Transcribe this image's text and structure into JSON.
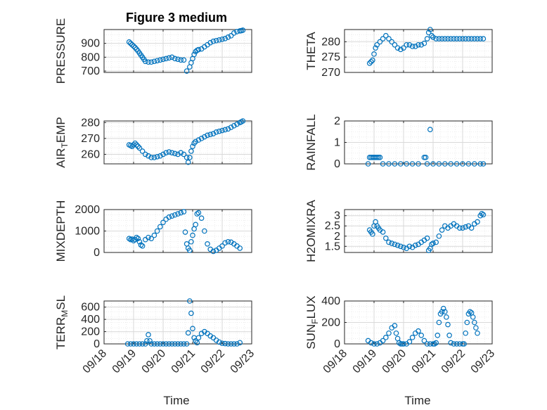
{
  "chart_data": [
    {
      "id": "pressure",
      "type": "scatter",
      "title": "Figure 3 medium",
      "ylabel": "PRESSURE",
      "ylim": [
        690,
        1000
      ],
      "yticks": [
        700,
        800,
        900
      ],
      "x": [
        0.85,
        0.9,
        0.95,
        1.0,
        1.05,
        1.1,
        1.15,
        1.2,
        1.25,
        1.3,
        1.35,
        1.4,
        1.5,
        1.6,
        1.7,
        1.8,
        1.9,
        2.0,
        2.1,
        2.2,
        2.3,
        2.4,
        2.5,
        2.6,
        2.7,
        2.8,
        2.9,
        2.95,
        3.0,
        3.05,
        3.1,
        3.15,
        3.2,
        3.3,
        3.4,
        3.5,
        3.6,
        3.7,
        3.8,
        3.9,
        4.0,
        4.1,
        4.2,
        4.3,
        4.4,
        4.5,
        4.6,
        4.65,
        4.7
      ],
      "y": [
        910,
        900,
        890,
        880,
        870,
        858,
        845,
        830,
        815,
        800,
        785,
        770,
        765,
        765,
        770,
        775,
        780,
        785,
        790,
        795,
        800,
        790,
        785,
        780,
        780,
        700,
        730,
        760,
        790,
        820,
        840,
        850,
        855,
        860,
        875,
        890,
        905,
        915,
        920,
        925,
        930,
        935,
        945,
        955,
        975,
        985,
        990,
        992,
        995
      ]
    },
    {
      "id": "theta",
      "type": "scatter",
      "ylabel": "THETA",
      "ylim": [
        270,
        284
      ],
      "yticks": [
        270,
        275,
        280
      ],
      "x": [
        0.85,
        0.9,
        0.95,
        1.0,
        1.05,
        1.1,
        1.2,
        1.3,
        1.4,
        1.5,
        1.6,
        1.7,
        1.8,
        1.9,
        2.0,
        2.1,
        2.2,
        2.3,
        2.4,
        2.5,
        2.6,
        2.7,
        2.8,
        2.85,
        2.9,
        2.95,
        3.0,
        3.1,
        3.2,
        3.3,
        3.4,
        3.5,
        3.6,
        3.7,
        3.8,
        3.9,
        4.0,
        4.1,
        4.2,
        4.3,
        4.4,
        4.5,
        4.6,
        4.7
      ],
      "y": [
        273,
        273.5,
        274,
        276,
        278,
        279,
        280,
        281,
        282,
        281,
        280,
        279,
        278,
        277.5,
        278,
        279,
        279,
        278.5,
        278.5,
        279,
        279,
        279.5,
        281,
        283,
        284,
        282,
        281.5,
        281,
        281,
        281,
        281,
        281,
        281,
        281,
        281,
        281,
        281,
        281,
        281,
        281,
        281,
        281,
        281,
        281
      ]
    },
    {
      "id": "air_temp",
      "type": "scatter",
      "ylabel": "AIR_TEMP",
      "ylim": [
        254,
        281
      ],
      "yticks": [
        260,
        270,
        280
      ],
      "x": [
        0.85,
        0.9,
        0.95,
        1.0,
        1.05,
        1.1,
        1.15,
        1.2,
        1.3,
        1.4,
        1.5,
        1.6,
        1.7,
        1.8,
        1.9,
        2.0,
        2.1,
        2.2,
        2.3,
        2.4,
        2.5,
        2.6,
        2.7,
        2.8,
        2.85,
        2.9,
        2.95,
        3.0,
        3.05,
        3.1,
        3.2,
        3.3,
        3.4,
        3.5,
        3.6,
        3.7,
        3.8,
        3.9,
        4.0,
        4.1,
        4.2,
        4.3,
        4.4,
        4.5,
        4.6,
        4.65,
        4.7
      ],
      "y": [
        266,
        265.5,
        265,
        266,
        267,
        266,
        265,
        264,
        262,
        260,
        259,
        258,
        258,
        258.5,
        259,
        260,
        261,
        261.5,
        261,
        260.5,
        260,
        261,
        260,
        258,
        255,
        258,
        262,
        265,
        267,
        268,
        269,
        270,
        271,
        272,
        272.5,
        273,
        274,
        274.5,
        275,
        275.5,
        276,
        277,
        278,
        279,
        280,
        280.5,
        281
      ]
    },
    {
      "id": "rainfall",
      "type": "scatter",
      "ylabel": "RAINFALL",
      "ylim": [
        0,
        2
      ],
      "yticks": [
        0,
        1,
        2
      ],
      "x": [
        0.8,
        0.85,
        0.9,
        0.95,
        1.0,
        1.05,
        1.1,
        1.15,
        1.2,
        1.3,
        1.5,
        1.7,
        1.9,
        2.1,
        2.3,
        2.5,
        2.7,
        2.75,
        2.8,
        2.9,
        3.0,
        3.2,
        3.4,
        3.6,
        3.8,
        4.0,
        4.2,
        4.4,
        4.6,
        4.7
      ],
      "y": [
        0,
        0.3,
        0.3,
        0.3,
        0.3,
        0.3,
        0.3,
        0.3,
        0.3,
        0,
        0,
        0,
        0,
        0,
        0,
        0,
        0.3,
        0.3,
        0,
        1.6,
        0,
        0,
        0,
        0,
        0,
        0,
        0,
        0,
        0,
        0
      ]
    },
    {
      "id": "mixdepth",
      "type": "scatter",
      "ylabel": "MIXDEPTH",
      "ylim": [
        0,
        2000
      ],
      "yticks": [
        0,
        1000,
        2000
      ],
      "x": [
        0.85,
        0.9,
        0.95,
        1.0,
        1.05,
        1.1,
        1.15,
        1.2,
        1.25,
        1.3,
        1.4,
        1.5,
        1.6,
        1.7,
        1.8,
        1.9,
        2.0,
        2.1,
        2.2,
        2.3,
        2.4,
        2.5,
        2.6,
        2.7,
        2.75,
        2.8,
        2.85,
        2.9,
        2.95,
        3.0,
        3.05,
        3.1,
        3.15,
        3.2,
        3.3,
        3.4,
        3.5,
        3.6,
        3.7,
        3.8,
        3.9,
        4.0,
        4.1,
        4.2,
        4.3,
        4.4,
        4.5,
        4.6
      ],
      "y": [
        650,
        600,
        620,
        550,
        600,
        700,
        650,
        500,
        350,
        300,
        600,
        700,
        650,
        800,
        1000,
        1200,
        1400,
        1550,
        1650,
        1700,
        1750,
        1800,
        1850,
        1900,
        950,
        400,
        200,
        100,
        500,
        800,
        1100,
        1300,
        1800,
        1850,
        1600,
        1000,
        400,
        150,
        50,
        100,
        200,
        300,
        450,
        500,
        480,
        400,
        300,
        200
      ]
    },
    {
      "id": "h2omixra",
      "type": "scatter",
      "ylabel": "H2OMIXRA",
      "ylim": [
        1.2,
        3.3
      ],
      "yticks": [
        1.5,
        2,
        2.5,
        3
      ],
      "x": [
        0.85,
        0.9,
        0.95,
        1.0,
        1.05,
        1.1,
        1.15,
        1.2,
        1.3,
        1.4,
        1.5,
        1.6,
        1.7,
        1.8,
        1.9,
        2.0,
        2.1,
        2.2,
        2.3,
        2.4,
        2.5,
        2.6,
        2.7,
        2.8,
        2.85,
        2.9,
        2.95,
        3.0,
        3.1,
        3.2,
        3.3,
        3.4,
        3.5,
        3.6,
        3.7,
        3.8,
        3.9,
        4.0,
        4.1,
        4.2,
        4.3,
        4.4,
        4.5,
        4.6,
        4.65,
        4.7
      ],
      "y": [
        2.3,
        2.2,
        2.1,
        2.5,
        2.7,
        2.5,
        2.4,
        2.3,
        2.2,
        1.9,
        1.7,
        1.65,
        1.6,
        1.55,
        1.5,
        1.45,
        1.4,
        1.5,
        1.45,
        1.55,
        1.6,
        1.7,
        1.8,
        1.9,
        1.3,
        1.4,
        1.6,
        1.65,
        1.7,
        2.0,
        2.3,
        2.5,
        2.4,
        2.5,
        2.6,
        2.5,
        2.4,
        2.4,
        2.45,
        2.5,
        2.4,
        2.6,
        2.7,
        3.0,
        3.1,
        3.05
      ]
    },
    {
      "id": "terr_msl",
      "type": "scatter",
      "ylabel": "TERR_MSL",
      "ylim": [
        0,
        700
      ],
      "yticks": [
        0,
        200,
        400,
        600
      ],
      "x": [
        0.8,
        0.9,
        1.0,
        1.1,
        1.2,
        1.3,
        1.4,
        1.45,
        1.5,
        1.55,
        1.6,
        1.7,
        1.8,
        1.9,
        2.0,
        2.1,
        2.2,
        2.3,
        2.4,
        2.5,
        2.6,
        2.7,
        2.8,
        2.85,
        2.9,
        2.95,
        3.0,
        3.05,
        3.1,
        3.15,
        3.2,
        3.3,
        3.4,
        3.5,
        3.6,
        3.7,
        3.8,
        3.9,
        4.0,
        4.1,
        4.2,
        4.3,
        4.4,
        4.5,
        4.6
      ],
      "y": [
        0,
        0,
        0,
        0,
        0,
        0,
        0,
        50,
        150,
        50,
        0,
        0,
        0,
        0,
        0,
        0,
        0,
        0,
        0,
        0,
        0,
        0,
        0,
        180,
        700,
        500,
        250,
        100,
        50,
        20,
        100,
        170,
        200,
        170,
        130,
        100,
        60,
        30,
        10,
        5,
        0,
        0,
        0,
        0,
        20
      ]
    },
    {
      "id": "sun_flux",
      "type": "scatter",
      "ylabel": "SUN_FLUX",
      "ylim": [
        0,
        400
      ],
      "yticks": [
        0,
        200,
        400
      ],
      "x": [
        0.8,
        0.9,
        1.0,
        1.1,
        1.2,
        1.3,
        1.4,
        1.5,
        1.6,
        1.7,
        1.75,
        1.8,
        1.85,
        1.9,
        1.95,
        2.0,
        2.1,
        2.2,
        2.3,
        2.4,
        2.5,
        2.6,
        2.7,
        2.8,
        2.9,
        3.0,
        3.05,
        3.1,
        3.15,
        3.2,
        3.25,
        3.3,
        3.35,
        3.4,
        3.45,
        3.5,
        3.55,
        3.6,
        3.7,
        3.8,
        3.9,
        4.0,
        4.05,
        4.1,
        4.15,
        4.2,
        4.25,
        4.3,
        4.35,
        4.4,
        4.45,
        4.5
      ],
      "y": [
        30,
        10,
        0,
        0,
        10,
        30,
        60,
        100,
        150,
        170,
        100,
        50,
        10,
        0,
        0,
        0,
        0,
        20,
        60,
        100,
        120,
        80,
        30,
        0,
        0,
        0,
        0,
        10,
        80,
        200,
        280,
        300,
        330,
        300,
        250,
        180,
        80,
        10,
        0,
        0,
        0,
        0,
        0,
        100,
        200,
        280,
        300,
        290,
        250,
        200,
        150,
        100
      ]
    }
  ],
  "panels": [
    {
      "xticks": [],
      "ylabel": {
        "pre": "PRESSURE",
        "sub": "",
        "post": ""
      },
      "yticklabels": [
        "700",
        "800",
        "900"
      ]
    },
    {
      "xticks": [],
      "ylabel": {
        "pre": "THETA",
        "sub": "",
        "post": ""
      },
      "yticklabels": [
        "270",
        "275",
        "280"
      ]
    },
    {
      "xticks": [],
      "ylabel": {
        "pre": "AIR",
        "sub": "T",
        "post": "EMP"
      },
      "yticklabels": [
        "260",
        "270",
        "280"
      ]
    },
    {
      "xticks": [],
      "ylabel": {
        "pre": "RAINFALL",
        "sub": "",
        "post": ""
      },
      "yticklabels": [
        "0",
        "1",
        "2"
      ]
    },
    {
      "xticks": [],
      "ylabel": {
        "pre": "MIXDEPTH",
        "sub": "",
        "post": ""
      },
      "yticklabels": [
        "0",
        "1000",
        "2000"
      ]
    },
    {
      "xticks": [],
      "ylabel": {
        "pre": "H2OMIXRA",
        "sub": "",
        "post": ""
      },
      "yticklabels": [
        "1.5",
        "2",
        "2.5",
        "3"
      ]
    },
    {
      "xticks": [
        "09/18",
        "09/19",
        "09/20",
        "09/21",
        "09/22",
        "09/23"
      ],
      "ylabel": {
        "pre": "TERR",
        "sub": "M",
        "post": "SL"
      },
      "yticklabels": [
        "0",
        "200",
        "400",
        "600"
      ]
    },
    {
      "xticks": [
        "09/18",
        "09/19",
        "09/20",
        "09/21",
        "09/22",
        "09/23"
      ],
      "ylabel": {
        "pre": "SUN",
        "sub": "F",
        "post": "LUX"
      },
      "yticklabels": [
        "0",
        "200",
        "400"
      ]
    }
  ],
  "xlabel": "Time",
  "figure_title": "Figure 3 medium",
  "colors": {
    "marker": "#0072BD",
    "axis": "#262626",
    "grid": "#d9d9d9"
  }
}
